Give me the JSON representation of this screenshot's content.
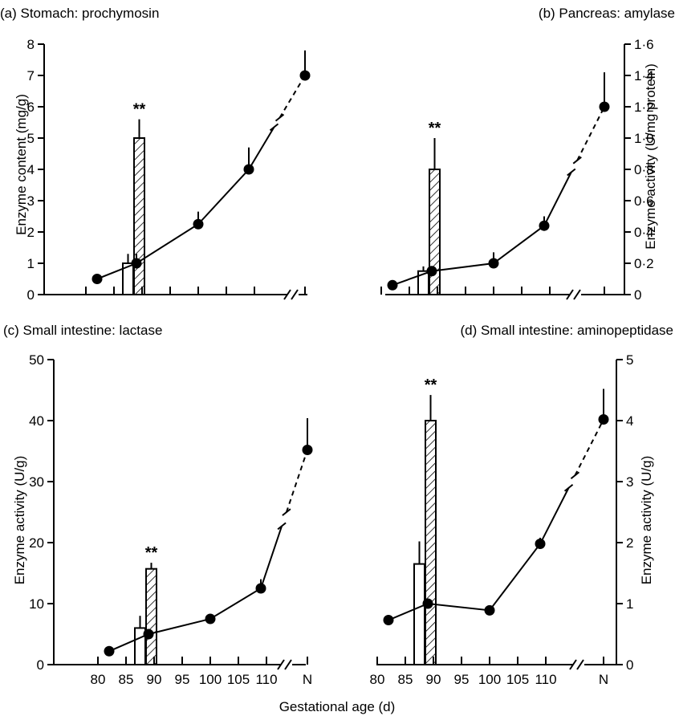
{
  "figure": {
    "xlabel": "Gestational age (d)"
  },
  "chart_data": [
    {
      "panel": "a",
      "type": "line",
      "title": "(a) Stomach: prochymosin",
      "ylabel": "Enzyme content (mg/g)",
      "y_axis_side": "left",
      "ylim": [
        0,
        8
      ],
      "yticks": [
        0,
        1,
        2,
        3,
        4,
        5,
        6,
        7,
        8
      ],
      "ytick_labels": [
        "0",
        "1",
        "2",
        "3",
        "4",
        "5",
        "6",
        "7",
        "8"
      ],
      "xlim": [
        80,
        115
      ],
      "x_break": true,
      "series": [
        {
          "type": "line-markers",
          "x": [
            82,
            89,
            100,
            109,
            "N"
          ],
          "y": [
            0.5,
            1.0,
            2.25,
            4.0,
            7.0
          ],
          "error_up": [
            null,
            0.3,
            0.4,
            0.7,
            0.8
          ]
        },
        {
          "type": "bar-open",
          "x": 87.5,
          "value": 1.0,
          "error_up": 0.3
        },
        {
          "type": "bar-hatched",
          "x": 89.5,
          "value": 5.0,
          "error_up": 0.6,
          "annotation": "**"
        }
      ]
    },
    {
      "panel": "b",
      "type": "line",
      "title": "(b) Pancreas: amylase",
      "ylabel": "Enzyme activity (U/mg protein)",
      "y_axis_side": "right",
      "ylim": [
        0,
        1.6
      ],
      "yticks": [
        0,
        0.2,
        0.4,
        0.6,
        0.8,
        1.0,
        1.2,
        1.4,
        1.6
      ],
      "ytick_labels": [
        "0",
        "0·2",
        "0·4",
        "0·6",
        "0·8",
        "1·0",
        "1·2",
        "1·4",
        "1·6"
      ],
      "xlim": [
        80,
        115
      ],
      "x_break": true,
      "series": [
        {
          "type": "line-markers",
          "x": [
            82,
            89,
            100,
            109,
            "N"
          ],
          "y": [
            0.06,
            0.15,
            0.2,
            0.44,
            1.2
          ],
          "error_up": [
            null,
            null,
            0.07,
            0.06,
            0.22
          ]
        },
        {
          "type": "bar-open",
          "x": 87.5,
          "value": 0.15,
          "error_up": 0.03
        },
        {
          "type": "bar-hatched",
          "x": 89.5,
          "value": 0.8,
          "error_up": 0.2,
          "annotation": "**"
        }
      ]
    },
    {
      "panel": "c",
      "type": "line",
      "title": "(c) Small intestine: lactase",
      "ylabel": "Enzyme activity (U/g)",
      "y_axis_side": "left",
      "ylim": [
        0,
        50
      ],
      "yticks": [
        0,
        10,
        20,
        30,
        40,
        50
      ],
      "ytick_labels": [
        "0",
        "10",
        "20",
        "30",
        "40",
        "50"
      ],
      "xlim": [
        80,
        115
      ],
      "xticks": [
        80,
        85,
        90,
        95,
        100,
        105,
        110,
        "N"
      ],
      "xtick_labels": [
        "80",
        "85",
        "90",
        "95",
        "100",
        "105",
        "110",
        "N"
      ],
      "x_break": true,
      "series": [
        {
          "type": "line-markers",
          "x": [
            82,
            89,
            100,
            109,
            "N"
          ],
          "y": [
            2.2,
            5.0,
            7.5,
            12.5,
            35.2
          ],
          "error_up": [
            null,
            null,
            null,
            1.5,
            5.2
          ]
        },
        {
          "type": "bar-open",
          "x": 87.5,
          "value": 6.0,
          "error_up": 2.0
        },
        {
          "type": "bar-hatched",
          "x": 89.5,
          "value": 15.7,
          "error_up": 1.0,
          "annotation": "**"
        }
      ]
    },
    {
      "panel": "d",
      "type": "line",
      "title": "(d) Small intestine:  aminopeptidase",
      "ylabel": "Enzyme activity (U/g)",
      "y_axis_side": "right",
      "ylim": [
        0,
        5
      ],
      "yticks": [
        0,
        1,
        2,
        3,
        4,
        5
      ],
      "ytick_labels": [
        "0",
        "1",
        "2",
        "3",
        "4",
        "5"
      ],
      "xlim": [
        80,
        115
      ],
      "xticks": [
        80,
        85,
        90,
        95,
        100,
        105,
        110,
        "N"
      ],
      "xtick_labels": [
        "80",
        "85",
        "90",
        "95",
        "100",
        "105",
        "110",
        "N"
      ],
      "x_break": true,
      "series": [
        {
          "type": "line-markers",
          "x": [
            82,
            89,
            100,
            109,
            "N"
          ],
          "y": [
            0.73,
            1.0,
            0.89,
            1.98,
            4.02
          ],
          "error_up": [
            null,
            null,
            null,
            0.1,
            0.5
          ]
        },
        {
          "type": "bar-open",
          "x": 87.5,
          "value": 1.65,
          "error_up": 0.37
        },
        {
          "type": "bar-hatched",
          "x": 89.5,
          "value": 4.0,
          "error_up": 0.42,
          "annotation": "**"
        }
      ]
    }
  ]
}
